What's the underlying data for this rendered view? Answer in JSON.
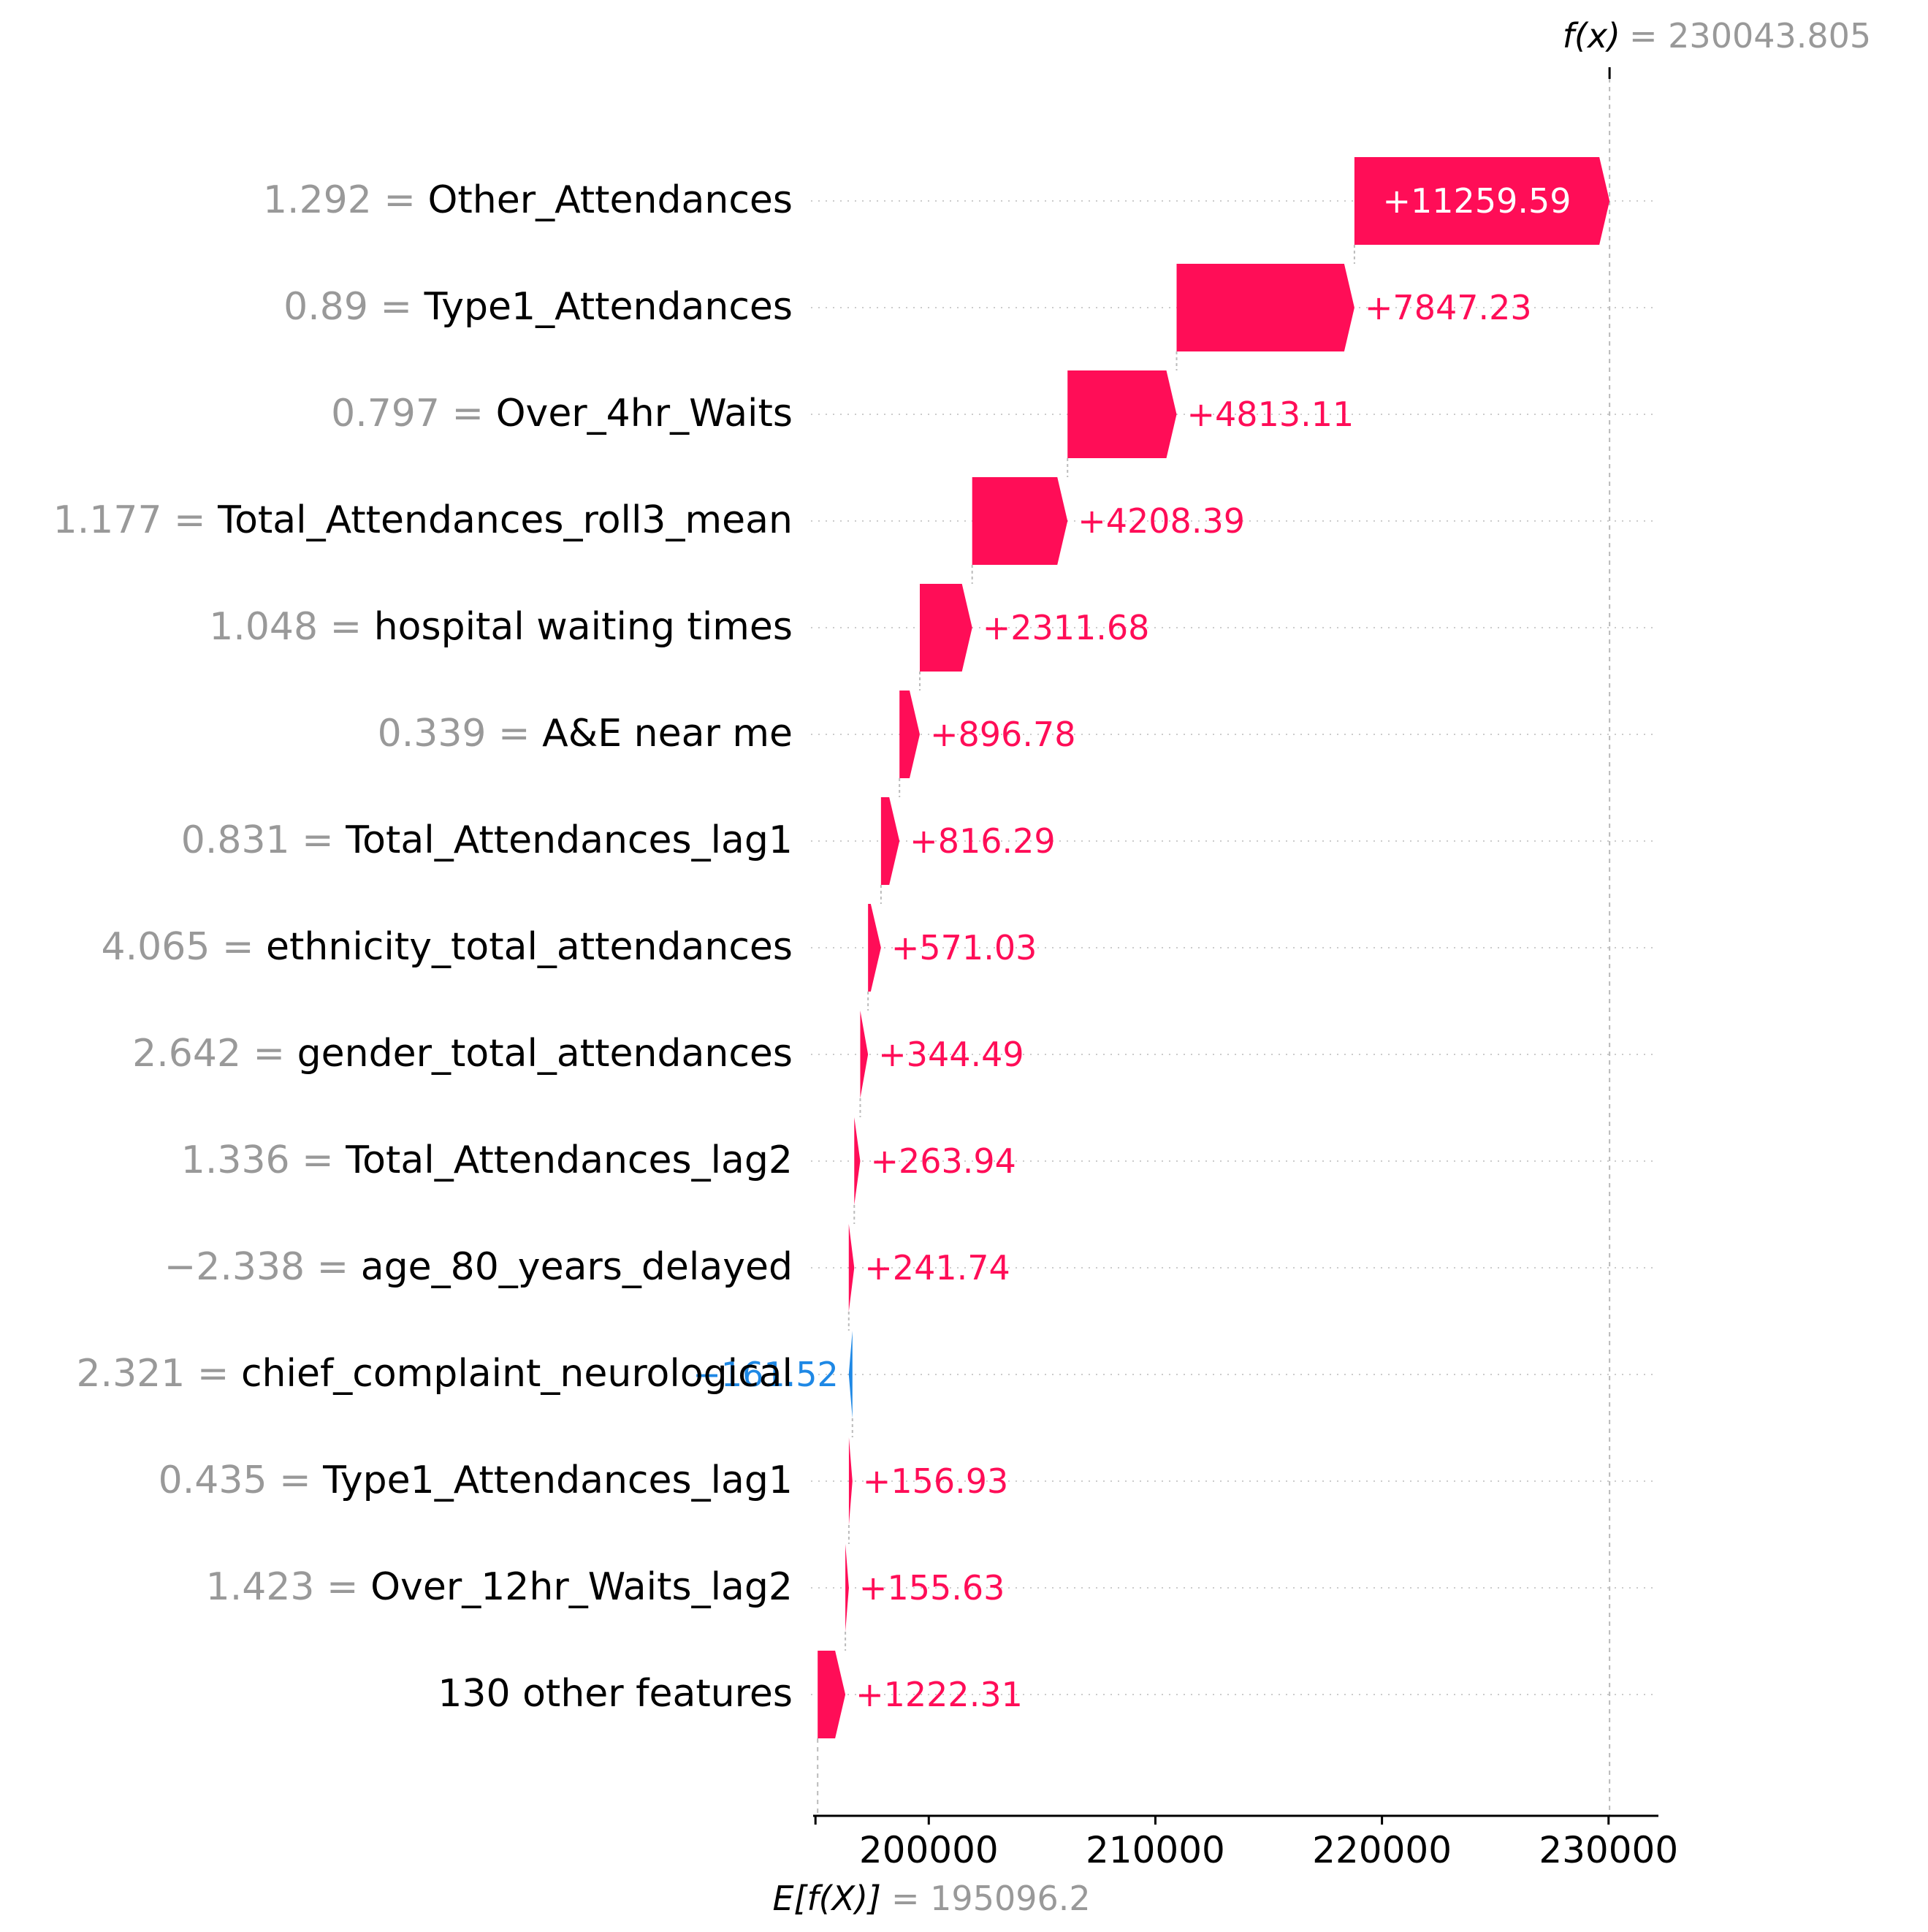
{
  "chart_data": {
    "type": "waterfall",
    "base_value_label": "E[f(X)]",
    "base_value": 195096.2,
    "base_value_text": "= 195096.2",
    "output_label": "f(x)",
    "output_value": 230043.805,
    "output_value_text": "= 230043.805",
    "xlim": [
      194800,
      232200
    ],
    "x_ticks": [
      {
        "value": 195000,
        "label": ""
      },
      {
        "value": 200000,
        "label": "200000"
      },
      {
        "value": 210000,
        "label": "210000"
      },
      {
        "value": 220000,
        "label": "220000"
      },
      {
        "value": 230000,
        "label": "230000"
      }
    ],
    "colors": {
      "positive": "#ff0d57",
      "negative": "#1e88e5",
      "feature_value": "#999999",
      "feature_name": "#000000",
      "axis": "#000000",
      "gridline": "#cccccc"
    },
    "features": [
      {
        "value_text": "1.292",
        "name": "Other_Attendances",
        "shap": 11259.59,
        "label": "+11259.59"
      },
      {
        "value_text": "0.89",
        "name": "Type1_Attendances",
        "shap": 7847.23,
        "label": "+7847.23"
      },
      {
        "value_text": "0.797",
        "name": "Over_4hr_Waits",
        "shap": 4813.11,
        "label": "+4813.11"
      },
      {
        "value_text": "1.177",
        "name": "Total_Attendances_roll3_mean",
        "shap": 4208.39,
        "label": "+4208.39"
      },
      {
        "value_text": "1.048",
        "name": "hospital waiting times",
        "shap": 2311.68,
        "label": "+2311.68"
      },
      {
        "value_text": "0.339",
        "name": "A&E near me",
        "shap": 896.78,
        "label": "+896.78"
      },
      {
        "value_text": "0.831",
        "name": "Total_Attendances_lag1",
        "shap": 816.29,
        "label": "+816.29"
      },
      {
        "value_text": "4.065",
        "name": "ethnicity_total_attendances",
        "shap": 571.03,
        "label": "+571.03"
      },
      {
        "value_text": "2.642",
        "name": "gender_total_attendances",
        "shap": 344.49,
        "label": "+344.49"
      },
      {
        "value_text": "1.336",
        "name": "Total_Attendances_lag2",
        "shap": 263.94,
        "label": "+263.94"
      },
      {
        "value_text": "−2.338",
        "name": "age_80_years_delayed",
        "shap": 241.74,
        "label": "+241.74"
      },
      {
        "value_text": "2.321",
        "name": "chief_complaint_neurological",
        "shap": -161.52,
        "label": "−161.52"
      },
      {
        "value_text": "0.435",
        "name": "Type1_Attendances_lag1",
        "shap": 156.93,
        "label": "+156.93"
      },
      {
        "value_text": "1.423",
        "name": "Over_12hr_Waits_lag2",
        "shap": 155.63,
        "label": "+155.63"
      },
      {
        "value_text": "",
        "name": "130 other features",
        "shap": 1222.31,
        "label": "+1222.31"
      }
    ]
  }
}
